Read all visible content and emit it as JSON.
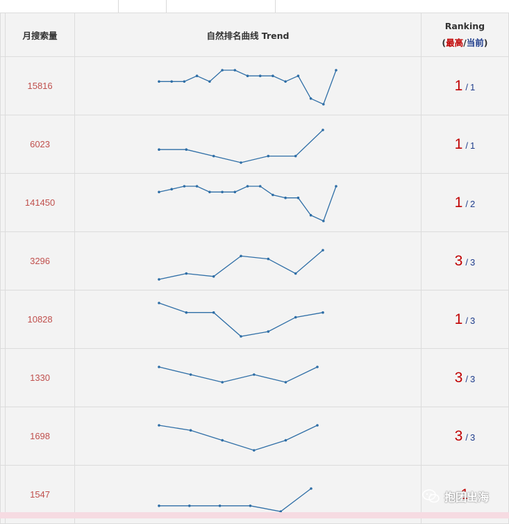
{
  "header": {
    "volume": "月搜索量",
    "trend": "自然排名曲线 Trend",
    "ranking": "Ranking",
    "paren_open": "(",
    "best": "最高",
    "slash": "/",
    "current": "当前",
    "paren_close": ")"
  },
  "rows": [
    {
      "volume": "15816",
      "best": "1",
      "current": "1",
      "trend": [
        2,
        2,
        2,
        1,
        2,
        0,
        0,
        1,
        1,
        1,
        2,
        1,
        5,
        6,
        0
      ]
    },
    {
      "volume": "6023",
      "best": "1",
      "current": "1",
      "trend": [
        3,
        3,
        4,
        5,
        4,
        4,
        0
      ]
    },
    {
      "volume": "141450",
      "best": "1",
      "current": "2",
      "trend": [
        2,
        1,
        0,
        0,
        2,
        2,
        2,
        0,
        0,
        3,
        4,
        4,
        10,
        12,
        0
      ]
    },
    {
      "volume": "3296",
      "best": "3",
      "current": "3",
      "trend": [
        5,
        4,
        4.5,
        1,
        1.5,
        4,
        0
      ]
    },
    {
      "volume": "10828",
      "best": "1",
      "current": "3",
      "trend": [
        0,
        1,
        1,
        3.5,
        3,
        1.5,
        1
      ]
    },
    {
      "volume": "1330",
      "best": "3",
      "current": "3",
      "trend": [
        0,
        1,
        2,
        1,
        2,
        0
      ]
    },
    {
      "volume": "1698",
      "best": "3",
      "current": "3",
      "trend": [
        0,
        1,
        3,
        5,
        3,
        0
      ]
    },
    {
      "volume": "1547",
      "best": "1",
      "current": "",
      "trend": [
        3,
        3,
        3,
        3,
        4,
        0
      ]
    }
  ],
  "colors": {
    "volume": "#c0504d",
    "best": "#c00000",
    "current": "#1f3d8c",
    "trend_line": "#2e6ea6"
  },
  "watermark": {
    "text": "抱团出海",
    "icon": "wechat-icon"
  }
}
